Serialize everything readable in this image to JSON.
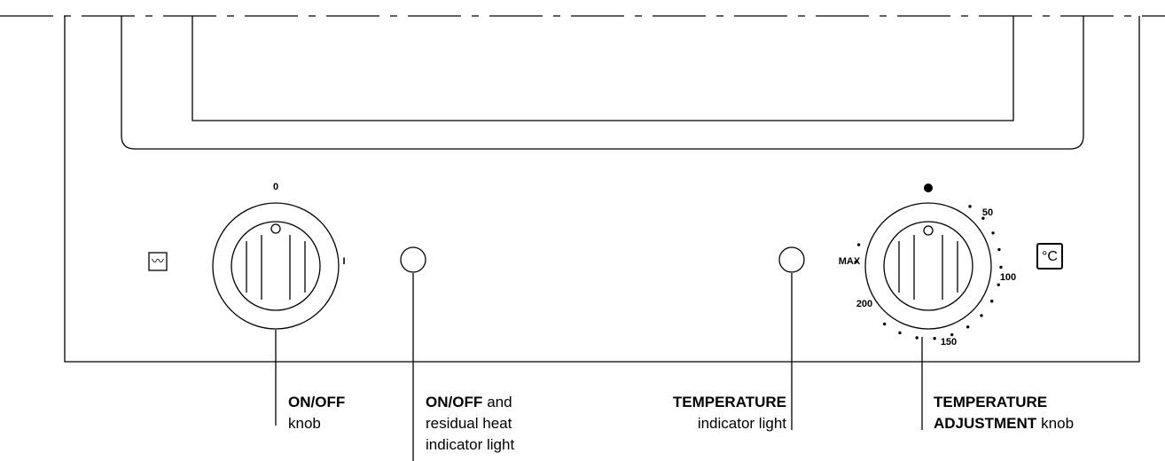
{
  "left_knob": {
    "marks": [
      "0",
      "I"
    ],
    "icon": "〰"
  },
  "right_knob": {
    "marks": [
      "50",
      "100",
      "150",
      "200",
      "MAX"
    ],
    "icon": "°C"
  },
  "callouts": [
    {
      "lines": [
        [
          {
            "text": "ON/OFF",
            "bold": true
          }
        ],
        [
          {
            "text": "knob"
          }
        ]
      ]
    },
    {
      "lines": [
        [
          {
            "text": "ON/OFF",
            "bold": true
          },
          {
            "text": "and"
          }
        ],
        [
          {
            "text": "residual heat"
          }
        ],
        [
          {
            "text": "indicator light"
          }
        ]
      ]
    },
    {
      "lines": [
        [
          {
            "text": "TEMPERATURE",
            "bold": true
          }
        ],
        [
          {
            "text": "indicator light"
          }
        ]
      ]
    },
    {
      "lines": [
        [
          {
            "text": "TEMPERATURE",
            "bold": true
          }
        ],
        [
          {
            "text": "ADJUSTMENT",
            "bold": true
          },
          {
            "text": "knob"
          }
        ]
      ]
    }
  ]
}
